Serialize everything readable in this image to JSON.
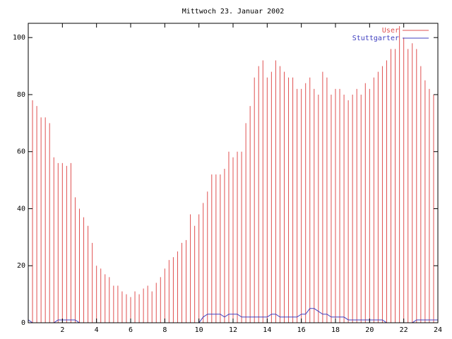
{
  "chart_data": {
    "type": "impulses",
    "title": "Mittwoch 23. Januar 2002",
    "x": [
      0,
      0.25,
      0.5,
      0.75,
      1,
      1.25,
      1.5,
      1.75,
      2,
      2.25,
      2.5,
      2.75,
      3,
      3.25,
      3.5,
      3.75,
      4,
      4.25,
      4.5,
      4.75,
      5,
      5.25,
      5.5,
      5.75,
      6,
      6.25,
      6.5,
      6.75,
      7,
      7.25,
      7.5,
      7.75,
      8,
      8.25,
      8.5,
      8.75,
      9,
      9.25,
      9.5,
      9.75,
      10,
      10.25,
      10.5,
      10.75,
      11,
      11.25,
      11.5,
      11.75,
      12,
      12.25,
      12.5,
      12.75,
      13,
      13.25,
      13.5,
      13.75,
      14,
      14.25,
      14.5,
      14.75,
      15,
      15.25,
      15.5,
      15.75,
      16,
      16.25,
      16.5,
      16.75,
      17,
      17.25,
      17.5,
      17.75,
      18,
      18.25,
      18.5,
      18.75,
      19,
      19.25,
      19.5,
      19.75,
      20,
      20.25,
      20.5,
      20.75,
      21,
      21.25,
      21.5,
      21.75,
      22,
      22.25,
      22.5,
      22.75,
      23,
      23.25,
      23.5,
      23.75,
      24
    ],
    "series": [
      {
        "name": "User",
        "color": "#e05050",
        "style": "impulses",
        "values": [
          80,
          78,
          76,
          72,
          72,
          70,
          58,
          56,
          56,
          55,
          56,
          44,
          40,
          37,
          34,
          28,
          20,
          19,
          17,
          16,
          13,
          13,
          11,
          10,
          9,
          11,
          10,
          12,
          13,
          11,
          14,
          16,
          19,
          22,
          23,
          25,
          28,
          29,
          38,
          34,
          38,
          42,
          46,
          52,
          52,
          52,
          54,
          60,
          58,
          60,
          60,
          70,
          76,
          86,
          90,
          92,
          86,
          88,
          92,
          90,
          88,
          86,
          86,
          82,
          82,
          84,
          86,
          82,
          80,
          88,
          86,
          80,
          82,
          82,
          80,
          78,
          80,
          82,
          80,
          84,
          82,
          86,
          88,
          90,
          92,
          96,
          96,
          104,
          100,
          96,
          98,
          96,
          90,
          85,
          82,
          80,
          78
        ]
      },
      {
        "name": "Stuttgarter",
        "color": "#4040c0",
        "style": "line",
        "values": [
          1,
          0,
          0,
          0,
          0,
          0,
          0,
          1,
          1,
          1,
          1,
          1,
          0,
          0,
          0,
          0,
          0,
          0,
          0,
          0,
          0,
          0,
          0,
          0,
          0,
          0,
          0,
          0,
          0,
          0,
          0,
          0,
          0,
          0,
          0,
          0,
          0,
          0,
          0,
          0,
          0,
          2,
          3,
          3,
          3,
          3,
          2,
          3,
          3,
          3,
          2,
          2,
          2,
          2,
          2,
          2,
          2,
          3,
          3,
          2,
          2,
          2,
          2,
          2,
          3,
          3,
          5,
          5,
          4,
          3,
          3,
          2,
          2,
          2,
          2,
          1,
          1,
          1,
          1,
          1,
          1,
          1,
          1,
          1,
          0,
          0,
          0,
          0,
          0,
          0,
          0,
          1,
          1,
          1,
          1,
          1,
          1
        ]
      }
    ],
    "xlim": [
      0,
      24
    ],
    "xticks": [
      2,
      4,
      6,
      8,
      10,
      12,
      14,
      16,
      18,
      20,
      22,
      24
    ],
    "ylim": [
      0,
      105
    ],
    "yticks": [
      0,
      20,
      40,
      60,
      80,
      100
    ],
    "legend": "top-right"
  }
}
